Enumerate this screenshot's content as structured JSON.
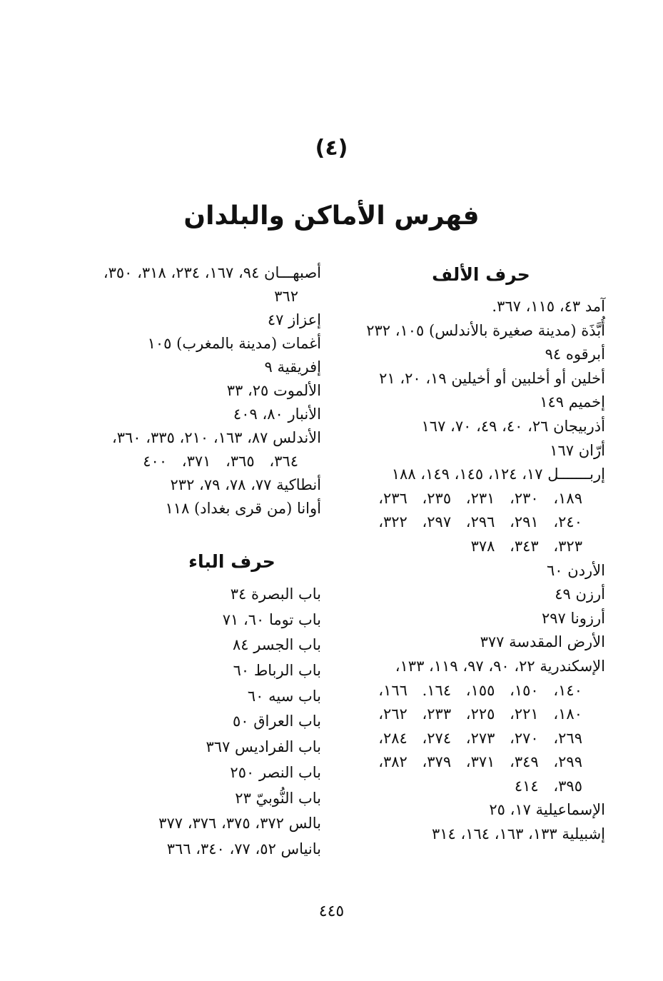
{
  "header": {
    "section_number": "(٤)",
    "title": "فهرس الأماكن والبلدان"
  },
  "right_column": {
    "heading": "حرف الألف",
    "lines": [
      {
        "text": "آمد ٤٣، ١١٥، ٣٦٧.",
        "cont": false
      },
      {
        "text": "أُبَّذَة (مدينة صغيرة بالأندلس) ١٠٥، ٢٣٢",
        "cont": false
      },
      {
        "text": "أبرقوه ٩٤",
        "cont": false
      },
      {
        "text": "أخلين أو أخلبين أو أخيلين ١٩، ٢٠، ٢١",
        "cont": false
      },
      {
        "text": "إخميم ١٤٩",
        "cont": false
      },
      {
        "text": "أذربيجان ٢٦، ٤٠، ٤٩، ٧٠، ١٦٧",
        "cont": false
      },
      {
        "text": "أرّان ١٦٧",
        "cont": false
      },
      {
        "text": "إربـــــــل ١٧، ١٢٤، ١٤٥، ١٤٩، ١٨٨",
        "cont": false
      },
      {
        "text": "١٨٩، ٢٣٠، ٢٣١، ٢٣٥، ٢٣٦،",
        "cont": true
      },
      {
        "text": "٢٤٠، ٢٩١، ٢٩٦، ٢٩٧، ٣٢٢،",
        "cont": true
      },
      {
        "text": "٣٢٣، ٣٤٣، ٣٧٨",
        "cont": true
      },
      {
        "text": "الأردن ٦٠",
        "cont": false
      },
      {
        "text": "أرزن ٤٩",
        "cont": false
      },
      {
        "text": "أرزونا ٢٩٧",
        "cont": false
      },
      {
        "text": "الأرض المقدسة ٣٧٧",
        "cont": false
      },
      {
        "text": "الإسكندرية ٢٢، ٩٠، ٩٧، ١١٩، ١٣٣،",
        "cont": false
      },
      {
        "text": "١٤٠، ١٥٠، ١٥٥، ١٦٤. ١٦٦،",
        "cont": true
      },
      {
        "text": "١٨٠، ٢٢١، ٢٢٥، ٢٣٣، ٢٦٢،",
        "cont": true
      },
      {
        "text": "٢٦٩، ٢٧٠، ٢٧٣، ٢٧٤، ٢٨٤،",
        "cont": true
      },
      {
        "text": "٢٩٩، ٣٤٩، ٣٧١، ٣٧٩، ٣٨٢،",
        "cont": true
      },
      {
        "text": "٣٩٥، ٤١٤",
        "cont": true
      },
      {
        "text": "الإسماعيلية ١٧، ٢٥",
        "cont": false
      },
      {
        "text": "إشبيلية ١٣٣، ١٦٣، ١٦٤، ٣١٤",
        "cont": false
      }
    ]
  },
  "left_column": {
    "lines_alif": [
      {
        "text": "أصبهـــان ٩٤، ١٦٧، ٢٣٤، ٣١٨، ٣٥٠،",
        "cont": false
      },
      {
        "text": "٣٦٢",
        "cont": true
      },
      {
        "text": "إعزاز ٤٧",
        "cont": false
      },
      {
        "text": "أغمات (مدينة بالمغرب) ١٠٥",
        "cont": false
      },
      {
        "text": "إفريقية ٩",
        "cont": false
      },
      {
        "text": "الألموت ٢٥، ٣٣",
        "cont": false
      },
      {
        "text": "الأنبار ٨٠، ٤٠٩",
        "cont": false
      },
      {
        "text": "الأندلس ٨٧، ١٦٣، ٢١٠، ٣٣٥، ٣٦٠،",
        "cont": false
      },
      {
        "text": "٣٦٤، ٣٦٥، ٣٧١، ٤٠٠",
        "cont": true
      },
      {
        "text": "أنطاكية ٧٧، ٧٨، ٧٩، ٢٣٢",
        "cont": false
      },
      {
        "text": "أوانا (من قرى بغداد) ١١٨",
        "cont": false
      }
    ],
    "heading_ba": "حرف الباء",
    "lines_ba": [
      {
        "text": "باب البصرة ٣٤",
        "cont": false
      },
      {
        "text": "باب توما ٦٠، ٧١",
        "cont": false
      },
      {
        "text": "باب الجسر ٨٤",
        "cont": false
      },
      {
        "text": "باب الرباط ٦٠",
        "cont": false
      },
      {
        "text": "باب سيه ٦٠",
        "cont": false
      },
      {
        "text": "باب العراق ٥٠",
        "cont": false
      },
      {
        "text": "باب الفراديس ٣٦٧",
        "cont": false
      },
      {
        "text": "باب النصر ٢٥٠",
        "cont": false
      },
      {
        "text": "باب النُّوبيّ ٢٣",
        "cont": false
      },
      {
        "text": "بالس ٣٧٢، ٣٧٥، ٣٧٦، ٣٧٧",
        "cont": false
      },
      {
        "text": "بانياس ٥٢، ٧٧، ٣٤٠، ٣٦٦",
        "cont": false
      }
    ]
  },
  "footer": {
    "page_number": "٤٤٥"
  }
}
